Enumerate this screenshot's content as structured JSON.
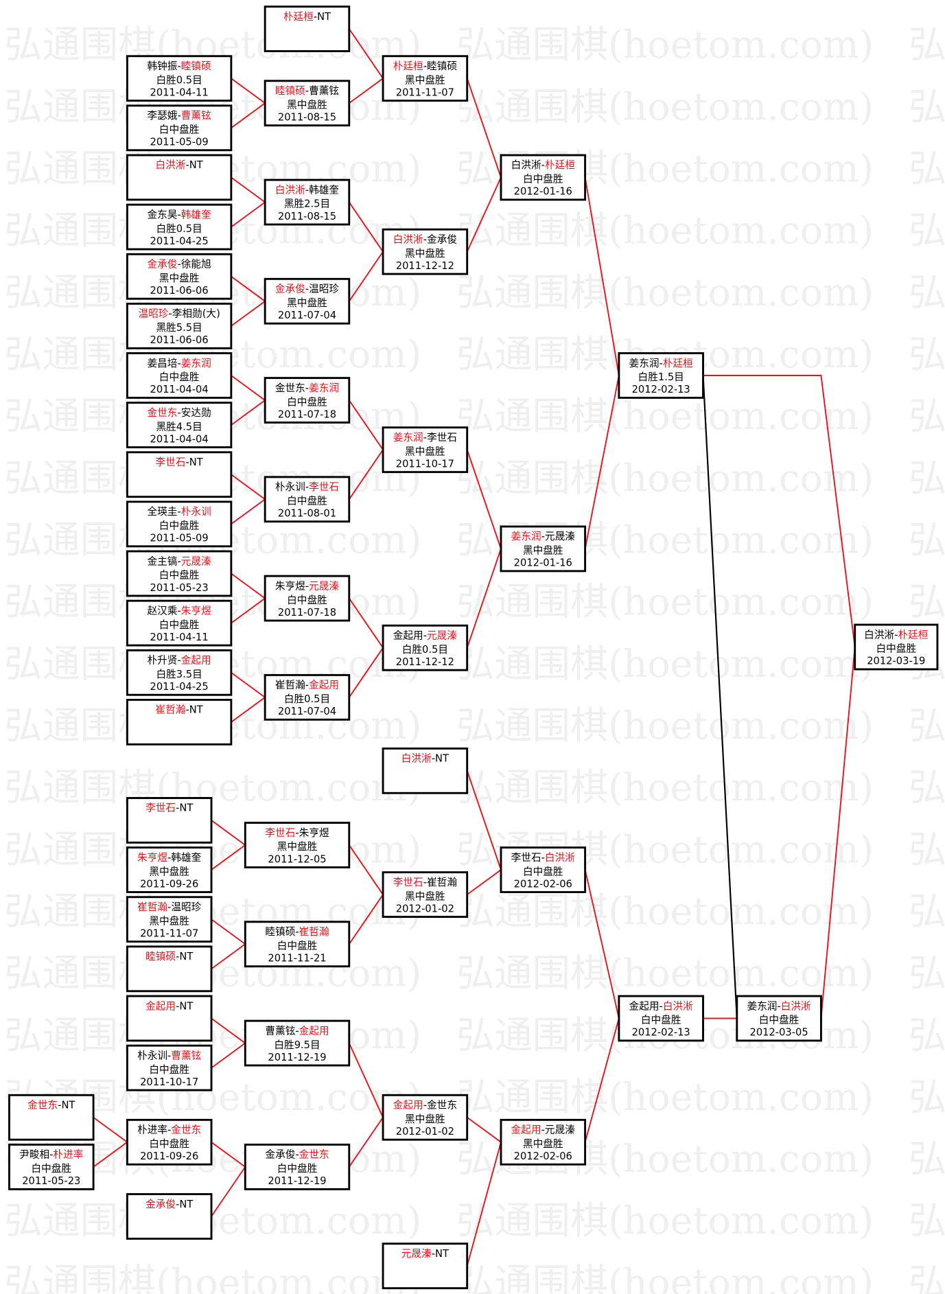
{
  "watermark": "弘通围棋(hoetom.com)",
  "colors": {
    "winner": "#e8141b",
    "loser": "#000000",
    "line": "#e8141b",
    "line_loser": "#000000"
  },
  "matches": [
    {
      "p1": "韩钟振",
      "p2": "睦镇硕",
      "winner": 2,
      "result": "白胜0.5目",
      "date": "2011-04-11"
    },
    {
      "p1": "李瑟娥",
      "p2": "曹薰铉",
      "winner": 2,
      "result": "白中盘胜",
      "date": "2011-05-09"
    },
    {
      "p1": "白洪淅",
      "p2": "NT",
      "winner": 1,
      "result": "",
      "date": ""
    },
    {
      "p1": "金东昊",
      "p2": "韩雄奎",
      "winner": 2,
      "result": "白胜0.5目",
      "date": "2011-04-25"
    },
    {
      "p1": "金承俊",
      "p2": "徐能旭",
      "winner": 1,
      "result": "黑中盘胜",
      "date": "2011-06-06"
    },
    {
      "p1": "温昭珍",
      "p2": "李相勋(大)",
      "winner": 1,
      "result": "黑胜5.5目",
      "date": "2011-06-06"
    },
    {
      "p1": "姜昌培",
      "p2": "姜东润",
      "winner": 2,
      "result": "白中盘胜",
      "date": "2011-04-04"
    },
    {
      "p1": "金世东",
      "p2": "安达勋",
      "winner": 1,
      "result": "黑胜4.5目",
      "date": "2011-04-04"
    },
    {
      "p1": "李世石",
      "p2": "NT",
      "winner": 1,
      "result": "",
      "date": ""
    },
    {
      "p1": "全瑛圭",
      "p2": "朴永训",
      "winner": 2,
      "result": "白中盘胜",
      "date": "2011-05-09"
    },
    {
      "p1": "金主镐",
      "p2": "元晟溱",
      "winner": 2,
      "result": "白中盘胜",
      "date": "2011-05-23"
    },
    {
      "p1": "赵汉乘",
      "p2": "朱亨煜",
      "winner": 2,
      "result": "白中盘胜",
      "date": "2011-04-11"
    },
    {
      "p1": "朴升贤",
      "p2": "金起用",
      "winner": 2,
      "result": "白胜3.5目",
      "date": "2011-04-25"
    },
    {
      "p1": "崔哲瀚",
      "p2": "NT",
      "winner": 1,
      "result": "",
      "date": ""
    },
    {
      "p1": "朴廷桓",
      "p2": "NT",
      "winner": 1,
      "result": "",
      "date": ""
    },
    {
      "p1": "睦镇硕",
      "p2": "曹薰铉",
      "winner": 1,
      "result": "黑中盘胜",
      "date": "2011-08-15"
    },
    {
      "p1": "白洪淅",
      "p2": "韩雄奎",
      "winner": 1,
      "result": "黑胜2.5目",
      "date": "2011-08-15"
    },
    {
      "p1": "金承俊",
      "p2": "温昭珍",
      "winner": 1,
      "result": "黑中盘胜",
      "date": "2011-07-04"
    },
    {
      "p1": "金世东",
      "p2": "姜东润",
      "winner": 2,
      "result": "白中盘胜",
      "date": "2011-07-18"
    },
    {
      "p1": "朴永训",
      "p2": "李世石",
      "winner": 2,
      "result": "白中盘胜",
      "date": "2011-08-01"
    },
    {
      "p1": "朱亨煜",
      "p2": "元晟溱",
      "winner": 2,
      "result": "白中盘胜",
      "date": "2011-07-18"
    },
    {
      "p1": "崔哲瀚",
      "p2": "金起用",
      "winner": 2,
      "result": "白胜0.5目",
      "date": "2011-07-04"
    },
    {
      "p1": "朴廷桓",
      "p2": "睦镇硕",
      "winner": 1,
      "result": "黑中盘胜",
      "date": "2011-11-07"
    },
    {
      "p1": "白洪淅",
      "p2": "金承俊",
      "winner": 1,
      "result": "黑中盘胜",
      "date": "2011-12-12"
    },
    {
      "p1": "姜东润",
      "p2": "李世石",
      "winner": 1,
      "result": "黑中盘胜",
      "date": "2011-10-17"
    },
    {
      "p1": "金起用",
      "p2": "元晟溱",
      "winner": 2,
      "result": "白胜0.5目",
      "date": "2011-12-12"
    },
    {
      "p1": "白洪淅",
      "p2": "朴廷桓",
      "winner": 2,
      "result": "白中盘胜",
      "date": "2012-01-16"
    },
    {
      "p1": "姜东润",
      "p2": "元晟溱",
      "winner": 1,
      "result": "黑中盘胜",
      "date": "2012-01-16"
    },
    {
      "p1": "姜东润",
      "p2": "朴廷桓",
      "winner": 2,
      "result": "白胜1.5目",
      "date": "2012-02-13"
    },
    {
      "p1": "李世石",
      "p2": "NT",
      "winner": 1,
      "result": "",
      "date": ""
    },
    {
      "p1": "朱亨煜",
      "p2": "韩雄奎",
      "winner": 1,
      "result": "黑中盘胜",
      "date": "2011-09-26"
    },
    {
      "p1": "崔哲瀚",
      "p2": "温昭珍",
      "winner": 1,
      "result": "黑中盘胜",
      "date": "2011-11-07"
    },
    {
      "p1": "睦镇硕",
      "p2": "NT",
      "winner": 1,
      "result": "",
      "date": ""
    },
    {
      "p1": "金起用",
      "p2": "NT",
      "winner": 1,
      "result": "",
      "date": ""
    },
    {
      "p1": "朴永训",
      "p2": "曹薰铉",
      "winner": 2,
      "result": "白中盘胜",
      "date": "2011-10-17"
    },
    {
      "p1": "朴进率",
      "p2": "金世东",
      "winner": 2,
      "result": "白中盘胜",
      "date": "2011-09-26"
    },
    {
      "p1": "金承俊",
      "p2": "NT",
      "winner": 1,
      "result": "",
      "date": ""
    },
    {
      "p1": "金世东",
      "p2": "NT",
      "winner": 1,
      "result": "",
      "date": ""
    },
    {
      "p1": "尹畯相",
      "p2": "朴进率",
      "winner": 2,
      "result": "白中盘胜",
      "date": "2011-05-23"
    },
    {
      "p1": "李世石",
      "p2": "朱亨煜",
      "winner": 1,
      "result": "黑中盘胜",
      "date": "2011-12-05"
    },
    {
      "p1": "睦镇硕",
      "p2": "崔哲瀚",
      "winner": 2,
      "result": "白中盘胜",
      "date": "2011-11-21"
    },
    {
      "p1": "曹薰铉",
      "p2": "金起用",
      "winner": 2,
      "result": "白胜9.5目",
      "date": "2011-12-19"
    },
    {
      "p1": "金承俊",
      "p2": "金世东",
      "winner": 2,
      "result": "白中盘胜",
      "date": "2011-12-19"
    },
    {
      "p1": "白洪淅",
      "p2": "NT",
      "winner": 1,
      "result": "",
      "date": ""
    },
    {
      "p1": "李世石",
      "p2": "崔哲瀚",
      "winner": 1,
      "result": "黑中盘胜",
      "date": "2012-01-02"
    },
    {
      "p1": "金起用",
      "p2": "金世东",
      "winner": 1,
      "result": "黑中盘胜",
      "date": "2012-01-02"
    },
    {
      "p1": "元晟溱",
      "p2": "NT",
      "winner": 1,
      "result": "",
      "date": ""
    },
    {
      "p1": "李世石",
      "p2": "白洪淅",
      "winner": 2,
      "result": "白中盘胜",
      "date": "2012-02-06"
    },
    {
      "p1": "金起用",
      "p2": "元晟溱",
      "winner": 1,
      "result": "黑中盘胜",
      "date": "2012-02-06"
    },
    {
      "p1": "金起用",
      "p2": "白洪淅",
      "winner": 2,
      "result": "白中盘胜",
      "date": "2012-02-13"
    },
    {
      "p1": "姜东润",
      "p2": "白洪淅",
      "winner": 2,
      "result": "白中盘胜",
      "date": "2012-03-05"
    },
    {
      "p1": "白洪淅",
      "p2": "朴廷桓",
      "winner": 2,
      "result": "白中盘胜",
      "date": "2012-03-19"
    }
  ]
}
